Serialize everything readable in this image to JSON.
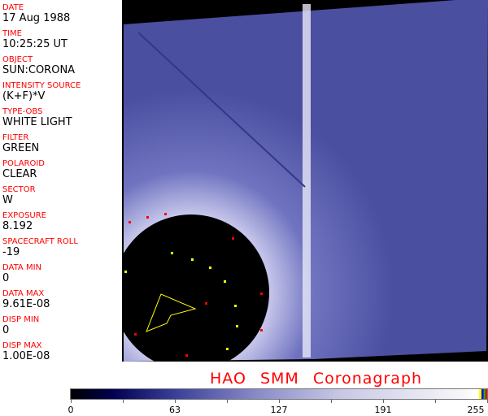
{
  "fields": [
    {
      "label": "DATE",
      "value": "17 Aug 1988"
    },
    {
      "label": "TIME",
      "value": "10:25:25 UT"
    },
    {
      "label": "OBJECT",
      "value": "SUN:CORONA"
    },
    {
      "label": "INTENSITY SOURCE",
      "value": "(K+F)*V"
    },
    {
      "label": "TYPE-OBS",
      "value": "WHITE LIGHT"
    },
    {
      "label": "FILTER",
      "value": "GREEN"
    },
    {
      "label": "POLAROID",
      "value": "CLEAR"
    },
    {
      "label": "SECTOR",
      "value": "W"
    },
    {
      "label": "EXPOSURE",
      "value": "8.192"
    },
    {
      "label": "SPACECRAFT ROLL",
      "value": "-19"
    },
    {
      "label": "DATA MIN",
      "value": "0"
    },
    {
      "label": "DATA MAX",
      "value": "9.61E-08"
    },
    {
      "label": "DISP MIN",
      "value": "0"
    },
    {
      "label": "DISP MAX",
      "value": "1.00E-08"
    }
  ],
  "title": "HAO  SMM Coronagraph",
  "colorbar": {
    "ticks": [
      "0",
      "63",
      "127",
      "191",
      "255"
    ],
    "colors": [
      "#000000",
      "#000050",
      "#8a8cc8",
      "#ffffff"
    ],
    "end_colors": [
      "#ffff00",
      "#0000ff",
      "#00cc00",
      "#ff0000"
    ]
  }
}
